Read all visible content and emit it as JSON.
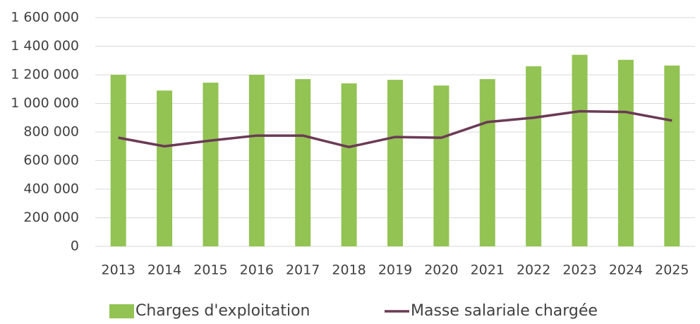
{
  "chart_data": {
    "type": "bar",
    "categories": [
      "2013",
      "2014",
      "2015",
      "2016",
      "2017",
      "2018",
      "2019",
      "2020",
      "2021",
      "2022",
      "2023",
      "2024",
      "2025"
    ],
    "series": [
      {
        "name": "Charges d'exploitation",
        "type": "bar",
        "color": "#92c353",
        "values": [
          1200000,
          1090000,
          1145000,
          1200000,
          1170000,
          1140000,
          1165000,
          1125000,
          1170000,
          1260000,
          1340000,
          1305000,
          1265000
        ]
      },
      {
        "name": "Masse salariale chargée",
        "type": "line",
        "color": "#6b3a55",
        "values": [
          760000,
          700000,
          740000,
          775000,
          775000,
          695000,
          765000,
          760000,
          870000,
          900000,
          945000,
          940000,
          880000
        ]
      }
    ],
    "ylim": [
      0,
      1600000
    ],
    "yticks": [
      0,
      {
        "value": 200000,
        "label": "200 000"
      },
      {
        "value": 400000,
        "label": "400 000"
      },
      {
        "value": 600000,
        "label": "600 000"
      },
      {
        "value": 800000,
        "label": "800 000"
      },
      {
        "value": 1000000,
        "label": "1 000 000"
      },
      {
        "value": 1200000,
        "label": "1 200 000"
      },
      {
        "value": 1400000,
        "label": "1 400 000"
      },
      {
        "value": 1600000,
        "label": "1 600 000"
      }
    ],
    "grid": true,
    "legend": "bottom"
  }
}
